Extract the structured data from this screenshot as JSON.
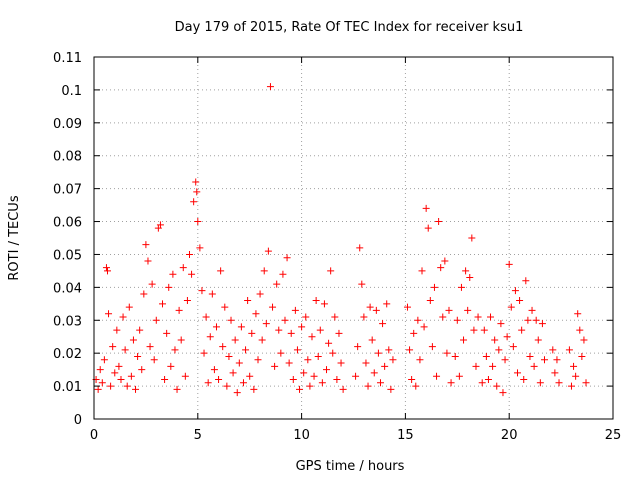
{
  "chart_data": {
    "type": "scatter",
    "title": "Day 179 of 2015, Rate Of TEC Index for receiver ksu1",
    "xlabel": "GPS time / hours",
    "ylabel": "ROTI / TECUs",
    "xlim": [
      0,
      25
    ],
    "ylim": [
      0,
      0.11
    ],
    "x_ticks": [
      "0",
      "5",
      "10",
      "15",
      "20",
      "25"
    ],
    "y_ticks": [
      "0",
      "0.01",
      "0.02",
      "0.03",
      "0.04",
      "0.05",
      "0.06",
      "0.07",
      "0.08",
      "0.09",
      "0.1",
      "0.11"
    ],
    "grid": true,
    "marker": "plus",
    "color": "#ff0000",
    "series": [
      {
        "points": [
          [
            0.1,
            0.012
          ],
          [
            0.2,
            0.009
          ],
          [
            0.3,
            0.015
          ],
          [
            0.4,
            0.011
          ],
          [
            0.5,
            0.018
          ],
          [
            0.6,
            0.046
          ],
          [
            0.65,
            0.045
          ],
          [
            0.7,
            0.032
          ],
          [
            0.8,
            0.01
          ],
          [
            0.9,
            0.022
          ],
          [
            1.0,
            0.014
          ],
          [
            1.1,
            0.027
          ],
          [
            1.2,
            0.016
          ],
          [
            1.3,
            0.012
          ],
          [
            1.4,
            0.031
          ],
          [
            1.5,
            0.021
          ],
          [
            1.6,
            0.01
          ],
          [
            1.7,
            0.034
          ],
          [
            1.8,
            0.013
          ],
          [
            1.9,
            0.024
          ],
          [
            2.0,
            0.009
          ],
          [
            2.1,
            0.019
          ],
          [
            2.2,
            0.027
          ],
          [
            2.3,
            0.015
          ],
          [
            2.4,
            0.038
          ],
          [
            2.5,
            0.053
          ],
          [
            2.6,
            0.048
          ],
          [
            2.7,
            0.022
          ],
          [
            2.8,
            0.041
          ],
          [
            2.9,
            0.018
          ],
          [
            3.0,
            0.03
          ],
          [
            3.1,
            0.058
          ],
          [
            3.2,
            0.059
          ],
          [
            3.3,
            0.035
          ],
          [
            3.4,
            0.012
          ],
          [
            3.5,
            0.026
          ],
          [
            3.6,
            0.04
          ],
          [
            3.7,
            0.016
          ],
          [
            3.8,
            0.044
          ],
          [
            3.9,
            0.021
          ],
          [
            4.0,
            0.009
          ],
          [
            4.1,
            0.033
          ],
          [
            4.2,
            0.024
          ],
          [
            4.3,
            0.046
          ],
          [
            4.4,
            0.013
          ],
          [
            4.5,
            0.036
          ],
          [
            4.6,
            0.05
          ],
          [
            4.7,
            0.044
          ],
          [
            4.8,
            0.066
          ],
          [
            4.9,
            0.072
          ],
          [
            4.95,
            0.069
          ],
          [
            5.0,
            0.06
          ],
          [
            5.1,
            0.052
          ],
          [
            5.2,
            0.039
          ],
          [
            5.3,
            0.02
          ],
          [
            5.4,
            0.031
          ],
          [
            5.5,
            0.011
          ],
          [
            5.6,
            0.025
          ],
          [
            5.7,
            0.038
          ],
          [
            5.8,
            0.015
          ],
          [
            5.9,
            0.028
          ],
          [
            6.0,
            0.012
          ],
          [
            6.1,
            0.045
          ],
          [
            6.2,
            0.022
          ],
          [
            6.3,
            0.034
          ],
          [
            6.4,
            0.01
          ],
          [
            6.5,
            0.019
          ],
          [
            6.6,
            0.03
          ],
          [
            6.7,
            0.014
          ],
          [
            6.8,
            0.024
          ],
          [
            6.9,
            0.008
          ],
          [
            7.0,
            0.017
          ],
          [
            7.1,
            0.028
          ],
          [
            7.2,
            0.011
          ],
          [
            7.3,
            0.021
          ],
          [
            7.4,
            0.036
          ],
          [
            7.5,
            0.013
          ],
          [
            7.6,
            0.026
          ],
          [
            7.7,
            0.009
          ],
          [
            7.8,
            0.032
          ],
          [
            7.9,
            0.018
          ],
          [
            8.0,
            0.038
          ],
          [
            8.1,
            0.024
          ],
          [
            8.2,
            0.045
          ],
          [
            8.3,
            0.029
          ],
          [
            8.4,
            0.051
          ],
          [
            8.5,
            0.101
          ],
          [
            8.6,
            0.034
          ],
          [
            8.7,
            0.016
          ],
          [
            8.8,
            0.041
          ],
          [
            8.9,
            0.027
          ],
          [
            9.0,
            0.02
          ],
          [
            9.1,
            0.044
          ],
          [
            9.2,
            0.03
          ],
          [
            9.3,
            0.049
          ],
          [
            9.4,
            0.017
          ],
          [
            9.5,
            0.026
          ],
          [
            9.6,
            0.012
          ],
          [
            9.7,
            0.033
          ],
          [
            9.8,
            0.021
          ],
          [
            9.9,
            0.009
          ],
          [
            10.0,
            0.028
          ],
          [
            10.1,
            0.014
          ],
          [
            10.2,
            0.031
          ],
          [
            10.3,
            0.018
          ],
          [
            10.4,
            0.01
          ],
          [
            10.5,
            0.025
          ],
          [
            10.6,
            0.013
          ],
          [
            10.7,
            0.036
          ],
          [
            10.8,
            0.019
          ],
          [
            10.9,
            0.027
          ],
          [
            11.0,
            0.011
          ],
          [
            11.1,
            0.035
          ],
          [
            11.2,
            0.015
          ],
          [
            11.3,
            0.023
          ],
          [
            11.4,
            0.045
          ],
          [
            11.5,
            0.02
          ],
          [
            11.6,
            0.031
          ],
          [
            11.7,
            0.012
          ],
          [
            11.8,
            0.026
          ],
          [
            11.9,
            0.017
          ],
          [
            12.0,
            0.009
          ],
          [
            12.6,
            0.013
          ],
          [
            12.7,
            0.022
          ],
          [
            12.8,
            0.052
          ],
          [
            12.9,
            0.041
          ],
          [
            13.0,
            0.031
          ],
          [
            13.1,
            0.017
          ],
          [
            13.2,
            0.01
          ],
          [
            13.3,
            0.034
          ],
          [
            13.4,
            0.024
          ],
          [
            13.5,
            0.014
          ],
          [
            13.6,
            0.033
          ],
          [
            13.7,
            0.02
          ],
          [
            13.8,
            0.011
          ],
          [
            13.9,
            0.029
          ],
          [
            14.0,
            0.016
          ],
          [
            14.1,
            0.035
          ],
          [
            14.2,
            0.021
          ],
          [
            14.3,
            0.009
          ],
          [
            14.4,
            0.018
          ],
          [
            15.1,
            0.034
          ],
          [
            15.2,
            0.021
          ],
          [
            15.3,
            0.012
          ],
          [
            15.4,
            0.026
          ],
          [
            15.5,
            0.01
          ],
          [
            15.6,
            0.03
          ],
          [
            15.7,
            0.018
          ],
          [
            15.8,
            0.045
          ],
          [
            15.9,
            0.028
          ],
          [
            16.0,
            0.064
          ],
          [
            16.1,
            0.058
          ],
          [
            16.2,
            0.036
          ],
          [
            16.3,
            0.022
          ],
          [
            16.4,
            0.04
          ],
          [
            16.5,
            0.013
          ],
          [
            16.6,
            0.06
          ],
          [
            16.7,
            0.046
          ],
          [
            16.8,
            0.031
          ],
          [
            16.9,
            0.048
          ],
          [
            17.0,
            0.02
          ],
          [
            17.1,
            0.033
          ],
          [
            17.2,
            0.011
          ],
          [
            17.4,
            0.019
          ],
          [
            17.5,
            0.03
          ],
          [
            17.6,
            0.013
          ],
          [
            17.7,
            0.04
          ],
          [
            17.8,
            0.024
          ],
          [
            17.9,
            0.045
          ],
          [
            18.0,
            0.033
          ],
          [
            18.1,
            0.043
          ],
          [
            18.2,
            0.055
          ],
          [
            18.3,
            0.027
          ],
          [
            18.4,
            0.016
          ],
          [
            18.5,
            0.031
          ],
          [
            18.7,
            0.011
          ],
          [
            18.8,
            0.027
          ],
          [
            18.9,
            0.019
          ],
          [
            19.0,
            0.012
          ],
          [
            19.1,
            0.031
          ],
          [
            19.2,
            0.016
          ],
          [
            19.3,
            0.024
          ],
          [
            19.4,
            0.01
          ],
          [
            19.5,
            0.021
          ],
          [
            19.6,
            0.029
          ],
          [
            19.7,
            0.008
          ],
          [
            19.8,
            0.018
          ],
          [
            19.9,
            0.025
          ],
          [
            20.0,
            0.047
          ],
          [
            20.1,
            0.034
          ],
          [
            20.2,
            0.022
          ],
          [
            20.3,
            0.039
          ],
          [
            20.4,
            0.014
          ],
          [
            20.5,
            0.036
          ],
          [
            20.6,
            0.027
          ],
          [
            20.7,
            0.012
          ],
          [
            20.8,
            0.042
          ],
          [
            20.9,
            0.03
          ],
          [
            21.0,
            0.019
          ],
          [
            21.1,
            0.033
          ],
          [
            21.2,
            0.016
          ],
          [
            21.3,
            0.03
          ],
          [
            21.4,
            0.024
          ],
          [
            21.5,
            0.011
          ],
          [
            21.6,
            0.029
          ],
          [
            21.7,
            0.018
          ],
          [
            22.1,
            0.021
          ],
          [
            22.2,
            0.014
          ],
          [
            22.3,
            0.018
          ],
          [
            22.4,
            0.011
          ],
          [
            22.9,
            0.021
          ],
          [
            23.0,
            0.01
          ],
          [
            23.1,
            0.016
          ],
          [
            23.2,
            0.013
          ],
          [
            23.3,
            0.032
          ],
          [
            23.4,
            0.027
          ],
          [
            23.5,
            0.019
          ],
          [
            23.6,
            0.024
          ],
          [
            23.7,
            0.011
          ]
        ]
      }
    ]
  }
}
